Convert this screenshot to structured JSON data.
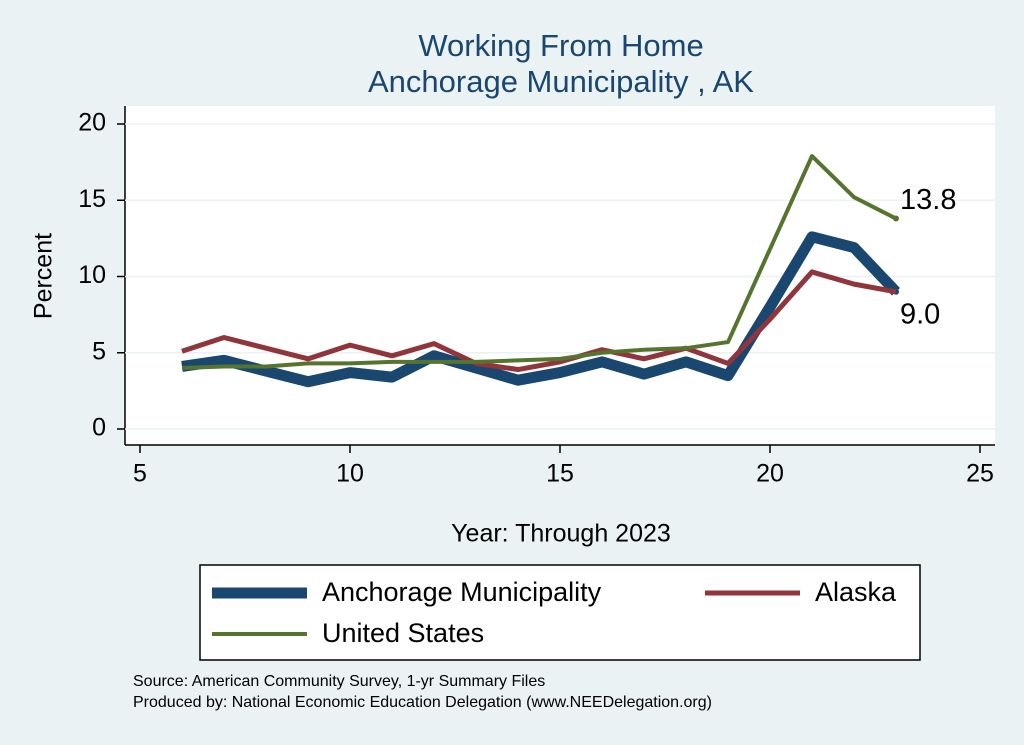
{
  "chart_data": {
    "type": "line",
    "title": [
      "Working From Home",
      "Anchorage Municipality , AK"
    ],
    "x_label": "Year: Through 2023",
    "y_label": "Percent",
    "x": [
      6,
      7,
      8,
      9,
      10,
      11,
      12,
      13,
      14,
      15,
      16,
      17,
      18,
      19,
      20,
      21,
      22,
      23
    ],
    "series": [
      {
        "name": "Anchorage Municipality",
        "color": "#1a476f",
        "values": [
          4.1,
          4.5,
          3.8,
          3.1,
          3.7,
          3.4,
          4.8,
          4.0,
          3.2,
          3.7,
          4.4,
          3.6,
          4.4,
          3.5,
          8.0,
          12.6,
          11.9,
          9.0
        ],
        "value_labels": [
          null,
          null,
          null,
          null,
          null,
          null,
          null,
          null,
          null,
          null,
          null,
          null,
          null,
          null,
          null,
          null,
          null,
          "9.0"
        ]
      },
      {
        "name": "Alaska",
        "color": "#90353b",
        "values": [
          5.1,
          6.0,
          5.3,
          4.6,
          5.5,
          4.8,
          5.6,
          4.3,
          3.9,
          4.4,
          5.2,
          4.6,
          5.3,
          4.3,
          7.2,
          10.3,
          9.5,
          9.0
        ]
      },
      {
        "name": "United States",
        "color": "#55752f",
        "values": [
          4.0,
          4.1,
          4.1,
          4.3,
          4.3,
          4.4,
          4.4,
          4.4,
          4.5,
          4.6,
          5.0,
          5.2,
          5.3,
          5.7,
          11.8,
          17.9,
          15.2,
          13.8
        ],
        "value_labels": [
          null,
          null,
          null,
          null,
          null,
          null,
          null,
          null,
          null,
          null,
          null,
          null,
          null,
          null,
          null,
          null,
          null,
          "13.8"
        ]
      }
    ],
    "xlim": [
      5,
      25
    ],
    "xticks": [
      5,
      10,
      15,
      20,
      25
    ],
    "ylim": [
      0,
      20
    ],
    "yticks": [
      0,
      5,
      10,
      15,
      20
    ],
    "grid": true,
    "legend": "bottom",
    "notes": [
      "Source: American Community Survey, 1-yr Summary Files",
      "Produced by: National Economic Education Delegation (www.NEEDelegation.org)"
    ]
  }
}
